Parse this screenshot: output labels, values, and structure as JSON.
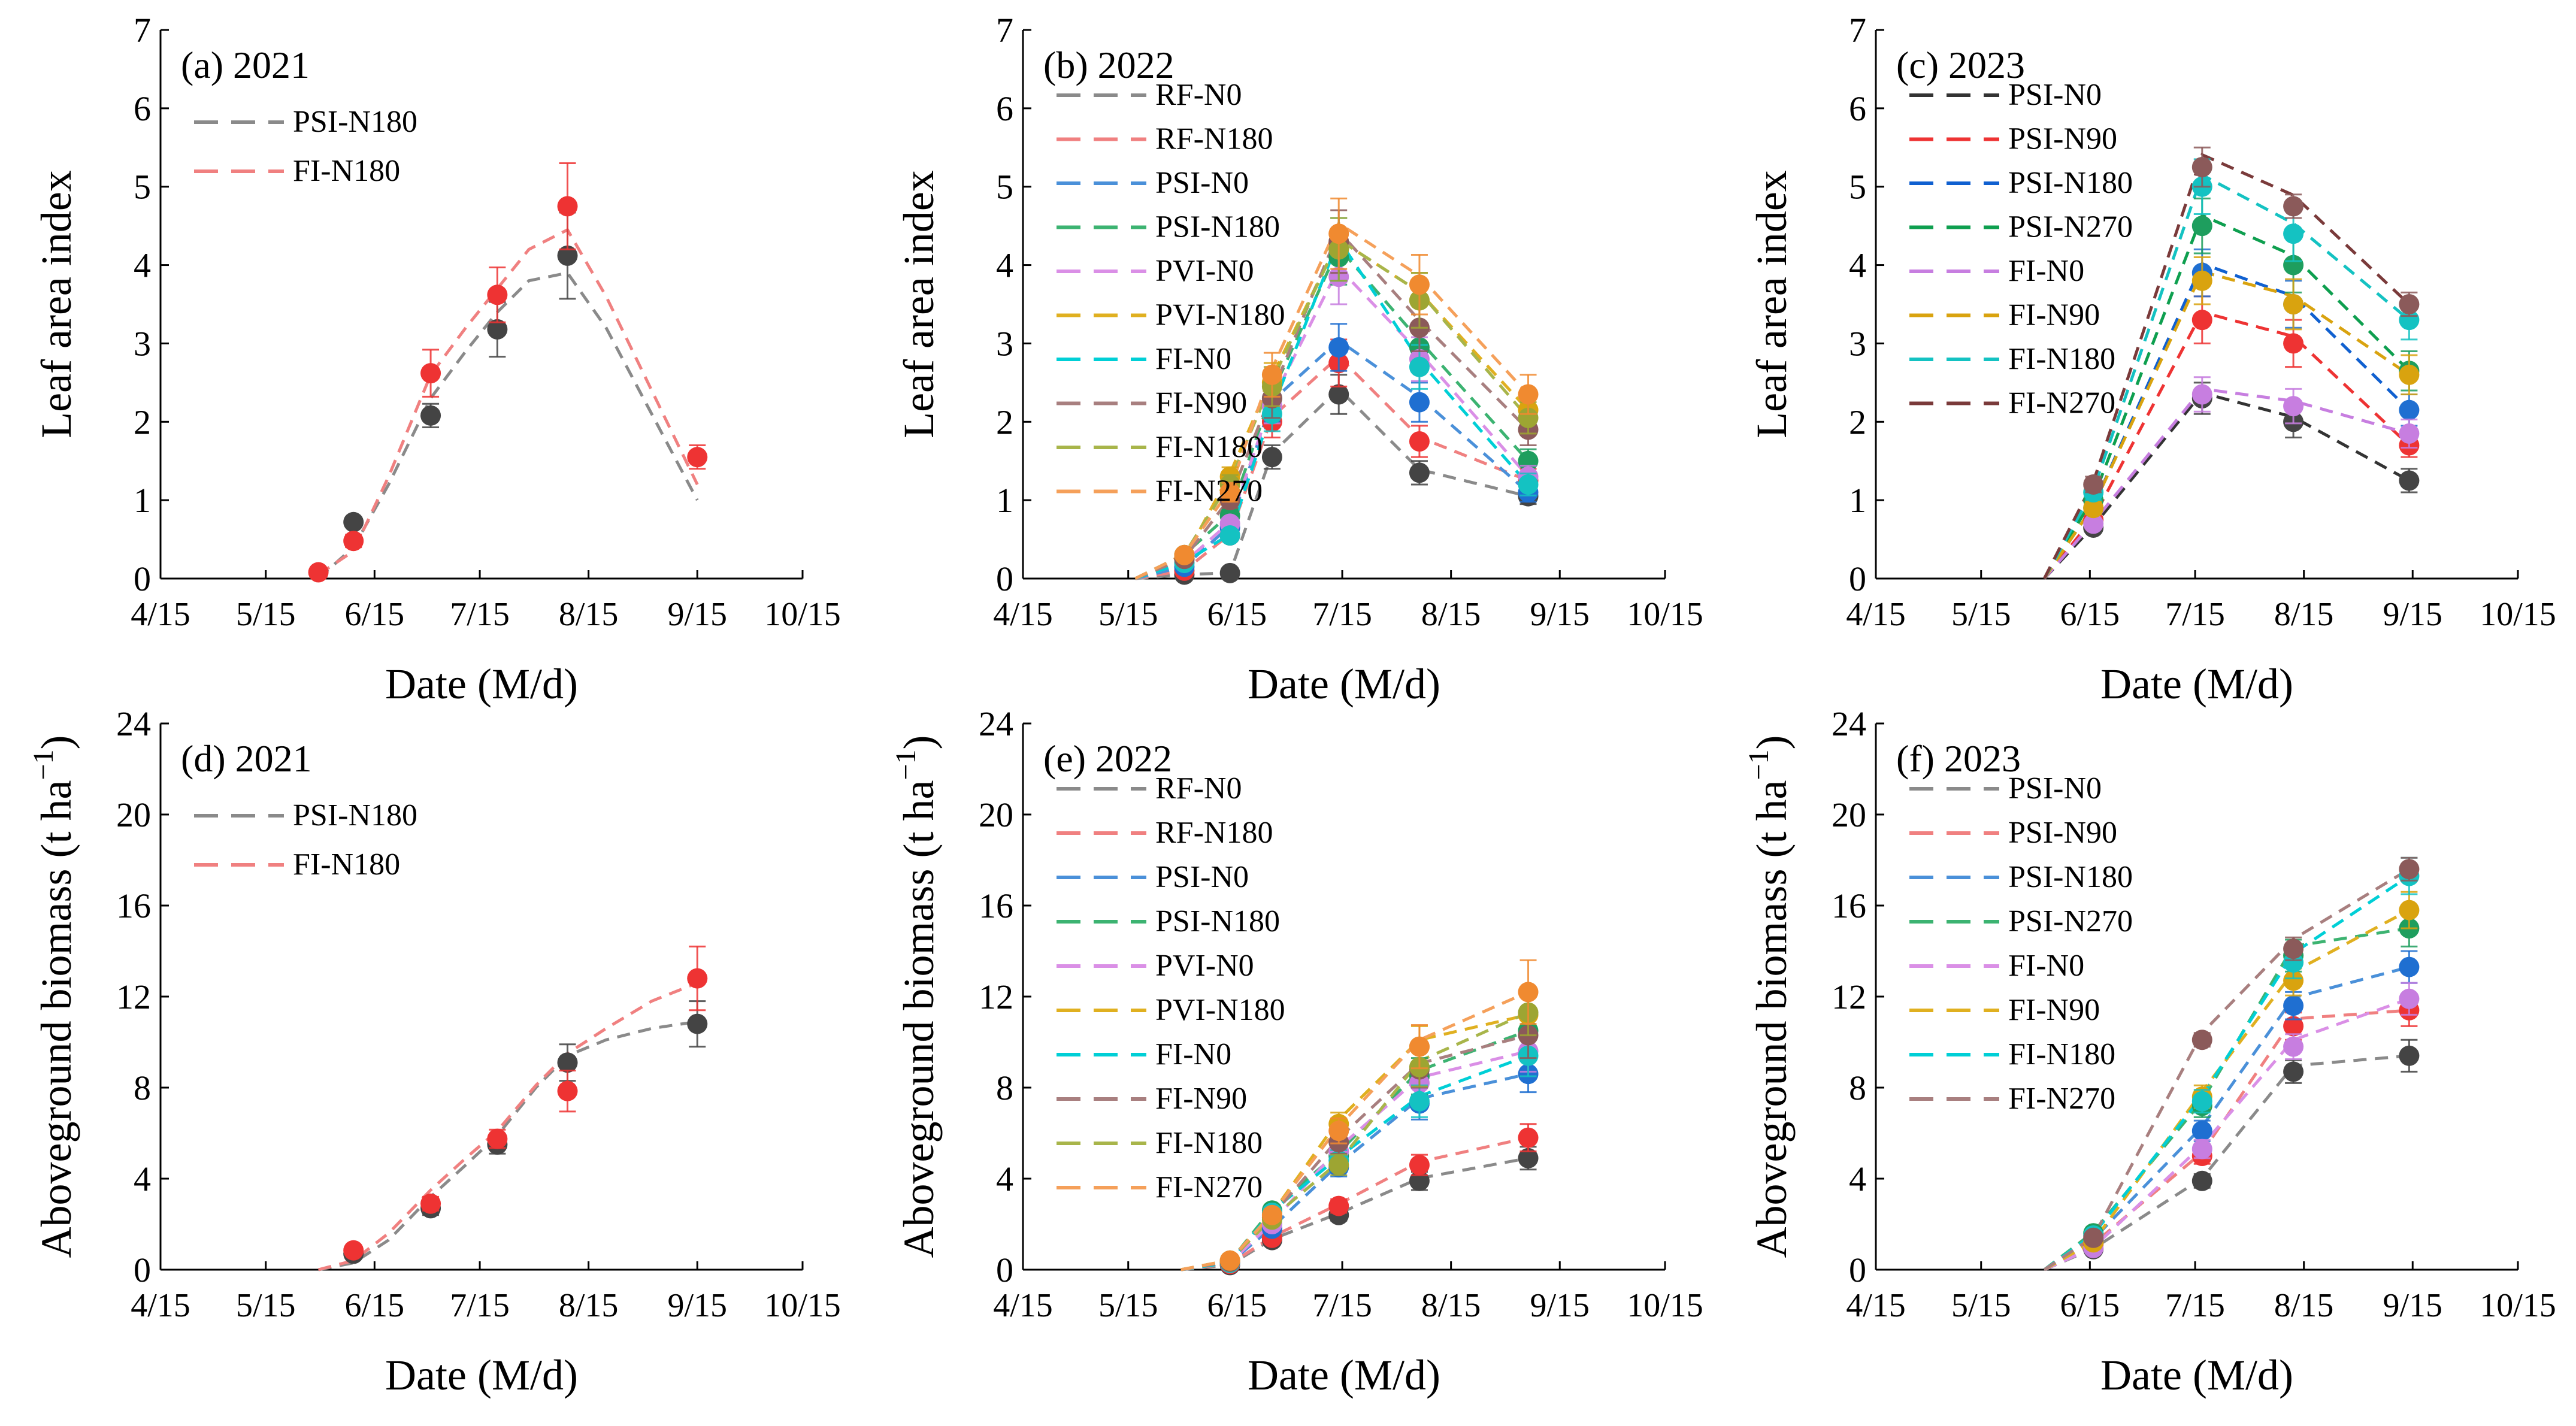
{
  "figure": {
    "x_tick_labels": [
      "4/15",
      "5/15",
      "6/15",
      "7/15",
      "8/15",
      "9/15",
      "10/15"
    ],
    "x_axis_label": "Date (M/d)",
    "lai_y_label": "Leaf area index",
    "biomass_y_label_main": "Aboveground biomass (t ha",
    "biomass_y_label_sup": "−1",
    "biomass_y_label_end": ")"
  },
  "chart_data": [
    {
      "type": "scatter",
      "title": "(a) 2021",
      "xlabel": "Date (M/d)",
      "ylabel": "Leaf area index",
      "xlim": [
        105,
        288
      ],
      "ylim": [
        0,
        7
      ],
      "yticks": [
        0,
        1,
        2,
        3,
        4,
        5,
        6,
        7
      ],
      "legend_position": "top-left",
      "series": [
        {
          "name": "PSI-N180",
          "line_color": "#8a8a8a",
          "marker_color": "#444444",
          "x": [
            160,
            182,
            201,
            221
          ],
          "y": [
            0.72,
            2.08,
            3.18,
            4.12
          ],
          "err": [
            0.06,
            0.15,
            0.35,
            0.55
          ],
          "curve_x": [
            150,
            160,
            170,
            182,
            192,
            201,
            210,
            221,
            232,
            245,
            258
          ],
          "curve_y": [
            0.0,
            0.4,
            1.2,
            2.3,
            2.9,
            3.4,
            3.8,
            3.9,
            3.2,
            2.1,
            1.0
          ]
        },
        {
          "name": "FI-N180",
          "line_color": "#f08080",
          "marker_color": "#ee3333",
          "x": [
            150,
            160,
            182,
            201,
            221,
            258
          ],
          "y": [
            0.08,
            0.48,
            2.62,
            3.62,
            4.75,
            1.55
          ],
          "err": [
            0.03,
            0.08,
            0.3,
            0.35,
            0.55,
            0.15
          ],
          "curve_x": [
            150,
            160,
            170,
            182,
            192,
            201,
            210,
            221,
            232,
            245,
            258
          ],
          "curve_y": [
            0.05,
            0.35,
            1.3,
            2.6,
            3.2,
            3.7,
            4.2,
            4.45,
            3.6,
            2.4,
            1.2
          ]
        }
      ]
    },
    {
      "type": "scatter",
      "title": "(b) 2022",
      "xlabel": "Date (M/d)",
      "ylabel": "Leaf area index",
      "xlim": [
        105,
        288
      ],
      "ylim": [
        0,
        7
      ],
      "yticks": [
        0,
        1,
        2,
        3,
        4,
        5,
        6,
        7
      ],
      "legend_position": "top-left",
      "x": [
        151,
        164,
        176,
        195,
        218,
        249
      ],
      "series": [
        {
          "name": "RF-N0",
          "line_color": "#8a8a8a",
          "marker_color": "#444444",
          "y": [
            0.05,
            0.07,
            1.55,
            2.35,
            1.35,
            1.05
          ],
          "err": [
            0.02,
            0.03,
            0.15,
            0.25,
            0.15,
            0.1
          ]
        },
        {
          "name": "RF-N180",
          "line_color": "#f08080",
          "marker_color": "#ee3333",
          "y": [
            0.1,
            0.55,
            2.0,
            2.75,
            1.75,
            1.25
          ],
          "err": [
            0.03,
            0.05,
            0.2,
            0.3,
            0.2,
            0.15
          ]
        },
        {
          "name": "PSI-N0",
          "line_color": "#4a90d9",
          "marker_color": "#1f6fd1",
          "y": [
            0.15,
            0.65,
            2.2,
            2.95,
            2.25,
            1.1
          ],
          "err": [
            0.03,
            0.06,
            0.2,
            0.3,
            0.25,
            0.12
          ]
        },
        {
          "name": "PSI-N180",
          "line_color": "#3cb371",
          "marker_color": "#1e9e5e",
          "y": [
            0.3,
            0.8,
            2.3,
            4.1,
            2.95,
            1.5
          ],
          "err": [
            0.04,
            0.08,
            0.25,
            0.35,
            0.3,
            0.15
          ]
        },
        {
          "name": "PVI-N0",
          "line_color": "#da8fe6",
          "marker_color": "#c77ee0",
          "y": [
            0.2,
            0.7,
            2.2,
            3.85,
            2.8,
            1.3
          ],
          "err": [
            0.03,
            0.07,
            0.22,
            0.35,
            0.28,
            0.14
          ]
        },
        {
          "name": "PVI-N180",
          "line_color": "#e0b020",
          "marker_color": "#d9a30f",
          "y": [
            0.25,
            1.3,
            2.5,
            4.2,
            3.55,
            2.15
          ],
          "err": [
            0.04,
            0.12,
            0.25,
            0.4,
            0.35,
            0.2
          ]
        },
        {
          "name": "FI-N0",
          "line_color": "#00cfd6",
          "marker_color": "#14c2c2",
          "y": [
            0.2,
            0.55,
            2.1,
            4.2,
            2.7,
            1.2
          ],
          "err": [
            0.03,
            0.06,
            0.22,
            0.4,
            0.28,
            0.14
          ]
        },
        {
          "name": "FI-N90",
          "line_color": "#a87f7f",
          "marker_color": "#8b5a5a",
          "y": [
            0.25,
            1.0,
            2.3,
            4.3,
            3.2,
            1.9
          ],
          "err": [
            0.04,
            0.1,
            0.25,
            0.4,
            0.3,
            0.2
          ]
        },
        {
          "name": "FI-N180",
          "line_color": "#a8b54a",
          "marker_color": "#9da532",
          "y": [
            0.3,
            1.2,
            2.45,
            4.2,
            3.55,
            2.05
          ],
          "err": [
            0.04,
            0.12,
            0.25,
            0.4,
            0.35,
            0.2
          ]
        },
        {
          "name": "FI-N270",
          "line_color": "#f5a05a",
          "marker_color": "#f08a30",
          "y": [
            0.3,
            1.1,
            2.6,
            4.4,
            3.75,
            2.35
          ],
          "err": [
            0.04,
            0.12,
            0.28,
            0.45,
            0.38,
            0.25
          ]
        }
      ]
    },
    {
      "type": "scatter",
      "title": "(c) 2023",
      "xlabel": "Date (M/d)",
      "ylabel": "Leaf area index",
      "xlim": [
        105,
        288
      ],
      "ylim": [
        0,
        7
      ],
      "yticks": [
        0,
        1,
        2,
        3,
        4,
        5,
        6,
        7
      ],
      "legend_position": "top-left",
      "x": [
        167,
        198,
        224,
        257
      ],
      "series": [
        {
          "name": "PSI-N0",
          "line_color": "#333333",
          "marker_color": "#444444",
          "y": [
            0.65,
            2.3,
            2.0,
            1.25
          ],
          "err": [
            0.06,
            0.2,
            0.2,
            0.15
          ]
        },
        {
          "name": "PSI-N90",
          "line_color": "#ee3333",
          "marker_color": "#ee3333",
          "y": [
            0.75,
            3.3,
            3.0,
            1.7
          ],
          "err": [
            0.07,
            0.3,
            0.3,
            0.15
          ]
        },
        {
          "name": "PSI-N180",
          "line_color": "#1060d0",
          "marker_color": "#1f6fd1",
          "y": [
            0.9,
            3.9,
            3.5,
            2.15
          ],
          "err": [
            0.08,
            0.3,
            0.3,
            0.2
          ]
        },
        {
          "name": "PSI-N270",
          "line_color": "#0e9f4f",
          "marker_color": "#1e9e5e",
          "y": [
            1.0,
            4.5,
            4.0,
            2.65
          ],
          "err": [
            0.09,
            0.35,
            0.35,
            0.25
          ]
        },
        {
          "name": "FI-N0",
          "line_color": "#c77ee0",
          "marker_color": "#c77ee0",
          "y": [
            0.7,
            2.35,
            2.2,
            1.85
          ],
          "err": [
            0.06,
            0.22,
            0.22,
            0.18
          ]
        },
        {
          "name": "FI-N90",
          "line_color": "#d9a30f",
          "marker_color": "#d9a30f",
          "y": [
            0.9,
            3.8,
            3.5,
            2.6
          ],
          "err": [
            0.08,
            0.3,
            0.32,
            0.25
          ]
        },
        {
          "name": "FI-N180",
          "line_color": "#14c2c2",
          "marker_color": "#14c2c2",
          "y": [
            1.1,
            5.0,
            4.4,
            3.3
          ],
          "err": [
            0.1,
            0.35,
            0.35,
            0.25
          ]
        },
        {
          "name": "FI-N270",
          "line_color": "#7a3a3a",
          "marker_color": "#8b5a5a",
          "y": [
            1.2,
            5.25,
            4.75,
            3.5
          ],
          "err": [
            0.1,
            0.25,
            0.15,
            0.15
          ]
        }
      ]
    },
    {
      "type": "scatter",
      "title": "(d) 2021",
      "xlabel": "Date (M/d)",
      "ylabel": "Aboveground biomass (t ha−1)",
      "xlim": [
        105,
        288
      ],
      "ylim": [
        0,
        24
      ],
      "yticks": [
        0,
        4,
        8,
        12,
        16,
        20,
        24
      ],
      "legend_position": "top-left",
      "series": [
        {
          "name": "PSI-N180",
          "line_color": "#8a8a8a",
          "marker_color": "#444444",
          "x": [
            160,
            182,
            201,
            221,
            258
          ],
          "y": [
            0.7,
            2.7,
            5.5,
            9.1,
            10.8
          ],
          "err": [
            0.1,
            0.3,
            0.4,
            0.8,
            1.0
          ],
          "curve_x": [
            150,
            160,
            170,
            182,
            192,
            201,
            212,
            221,
            232,
            245,
            258
          ],
          "curve_y": [
            0.0,
            0.3,
            1.3,
            3.2,
            4.6,
            5.9,
            8.0,
            9.4,
            10.1,
            10.6,
            10.9
          ]
        },
        {
          "name": "FI-N180",
          "line_color": "#f08080",
          "marker_color": "#ee3333",
          "x": [
            160,
            182,
            201,
            221,
            258
          ],
          "y": [
            0.85,
            2.9,
            5.75,
            7.85,
            12.8
          ],
          "err": [
            0.1,
            0.3,
            0.4,
            0.9,
            1.4
          ],
          "curve_x": [
            150,
            160,
            170,
            182,
            192,
            201,
            212,
            221,
            232,
            245,
            258
          ],
          "curve_y": [
            0.0,
            0.4,
            1.6,
            3.5,
            4.9,
            6.1,
            8.1,
            9.5,
            10.6,
            11.8,
            12.6
          ]
        }
      ]
    },
    {
      "type": "scatter",
      "title": "(e) 2022",
      "xlabel": "Date (M/d)",
      "ylabel": "Aboveground biomass (t ha−1)",
      "xlim": [
        105,
        288
      ],
      "ylim": [
        0,
        24
      ],
      "yticks": [
        0,
        4,
        8,
        12,
        16,
        20,
        24
      ],
      "legend_position": "top-left",
      "x": [
        164,
        176,
        195,
        218,
        249
      ],
      "series": [
        {
          "name": "RF-N0",
          "line_color": "#8a8a8a",
          "marker_color": "#444444",
          "y": [
            0.2,
            1.3,
            2.4,
            3.9,
            4.9
          ],
          "err": [
            0.05,
            0.15,
            0.25,
            0.4,
            0.5
          ]
        },
        {
          "name": "RF-N180",
          "line_color": "#f08080",
          "marker_color": "#ee3333",
          "y": [
            0.25,
            1.4,
            2.8,
            4.6,
            5.8
          ],
          "err": [
            0.05,
            0.15,
            0.3,
            0.45,
            0.6
          ]
        },
        {
          "name": "PSI-N0",
          "line_color": "#4a90d9",
          "marker_color": "#1f6fd1",
          "y": [
            0.3,
            1.8,
            4.5,
            7.3,
            8.6
          ],
          "err": [
            0.05,
            0.2,
            0.4,
            0.7,
            0.8
          ]
        },
        {
          "name": "PSI-N180",
          "line_color": "#3cb371",
          "marker_color": "#1e9e5e",
          "y": [
            0.35,
            2.6,
            5.0,
            8.5,
            10.5
          ],
          "err": [
            0.05,
            0.25,
            0.45,
            0.8,
            1.0
          ]
        },
        {
          "name": "PVI-N0",
          "line_color": "#da8fe6",
          "marker_color": "#c77ee0",
          "y": [
            0.3,
            2.0,
            5.2,
            8.2,
            9.6
          ],
          "err": [
            0.05,
            0.2,
            0.45,
            0.75,
            0.9
          ]
        },
        {
          "name": "PVI-N180",
          "line_color": "#e0b020",
          "marker_color": "#d9a30f",
          "y": [
            0.4,
            2.4,
            6.4,
            9.8,
            11.2
          ],
          "err": [
            0.05,
            0.25,
            0.5,
            0.9,
            1.0
          ]
        },
        {
          "name": "FI-N0",
          "line_color": "#00cfd6",
          "marker_color": "#14c2c2",
          "y": [
            0.3,
            2.5,
            4.8,
            7.4,
            9.4
          ],
          "err": [
            0.05,
            0.25,
            0.45,
            0.7,
            0.9
          ]
        },
        {
          "name": "FI-N90",
          "line_color": "#a87f7f",
          "marker_color": "#8b5a5a",
          "y": [
            0.35,
            2.3,
            5.6,
            8.8,
            10.3
          ],
          "err": [
            0.05,
            0.25,
            0.5,
            0.8,
            1.0
          ]
        },
        {
          "name": "FI-N180",
          "line_color": "#a8b54a",
          "marker_color": "#9da532",
          "y": [
            0.4,
            2.2,
            4.6,
            8.9,
            11.3
          ],
          "err": [
            0.05,
            0.22,
            0.45,
            0.85,
            1.0
          ]
        },
        {
          "name": "FI-N270",
          "line_color": "#f5a05a",
          "marker_color": "#f08a30",
          "y": [
            0.4,
            2.4,
            6.1,
            9.8,
            12.2
          ],
          "err": [
            0.05,
            0.25,
            0.55,
            0.95,
            1.4
          ]
        }
      ]
    },
    {
      "type": "scatter",
      "title": "(f) 2023",
      "xlabel": "Date (M/d)",
      "ylabel": "Aboveground biomass (t ha−1)",
      "xlim": [
        105,
        288
      ],
      "ylim": [
        0,
        24
      ],
      "yticks": [
        0,
        4,
        8,
        12,
        16,
        20,
        24
      ],
      "legend_position": "top-left",
      "x": [
        167,
        198,
        224,
        257
      ],
      "series": [
        {
          "name": "PSI-N0",
          "line_color": "#8a8a8a",
          "marker_color": "#444444",
          "y": [
            0.9,
            3.9,
            8.7,
            9.4
          ],
          "err": [
            0.1,
            0.3,
            0.5,
            0.7
          ]
        },
        {
          "name": "PSI-N90",
          "line_color": "#f08080",
          "marker_color": "#ee3333",
          "y": [
            1.1,
            5.0,
            10.7,
            11.4
          ],
          "err": [
            0.1,
            0.35,
            0.6,
            0.7
          ]
        },
        {
          "name": "PSI-N180",
          "line_color": "#4a90d9",
          "marker_color": "#1f6fd1",
          "y": [
            1.3,
            6.1,
            11.6,
            13.3
          ],
          "err": [
            0.12,
            0.45,
            0.6,
            0.7
          ]
        },
        {
          "name": "PSI-N270",
          "line_color": "#3cb371",
          "marker_color": "#1e9e5e",
          "y": [
            1.6,
            7.2,
            13.8,
            15.0
          ],
          "err": [
            0.14,
            0.5,
            0.7,
            0.8
          ]
        },
        {
          "name": "FI-N0",
          "line_color": "#da8fe6",
          "marker_color": "#c77ee0",
          "y": [
            0.95,
            5.3,
            9.8,
            11.9
          ],
          "err": [
            0.1,
            0.4,
            0.55,
            0.7
          ]
        },
        {
          "name": "FI-N90",
          "line_color": "#e0b020",
          "marker_color": "#d9a30f",
          "y": [
            1.2,
            7.6,
            12.7,
            15.8
          ],
          "err": [
            0.12,
            0.5,
            0.65,
            0.8
          ]
        },
        {
          "name": "FI-N180",
          "line_color": "#00cfd6",
          "marker_color": "#14c2c2",
          "y": [
            1.5,
            7.4,
            13.5,
            17.3
          ],
          "err": [
            0.14,
            0.5,
            0.7,
            0.8
          ]
        },
        {
          "name": "FI-N270",
          "line_color": "#a87f7f",
          "marker_color": "#8b5a5a",
          "y": [
            1.4,
            10.1,
            14.1,
            17.6
          ],
          "err": [
            0.13,
            0.3,
            0.5,
            0.5
          ]
        }
      ]
    }
  ]
}
